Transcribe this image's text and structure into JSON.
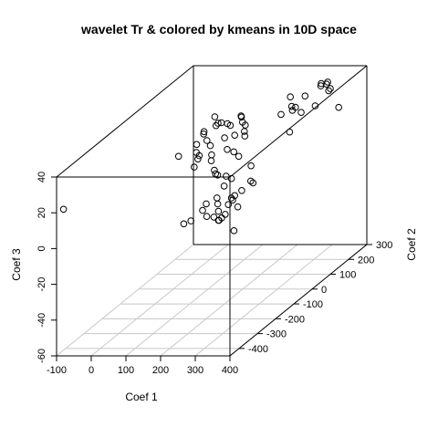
{
  "chart_data": {
    "type": "scatter3d",
    "title": "wavelet Tr & colored by kmeans in 10D space",
    "xlabel": "Coef 1",
    "ylabel": "Coef 2",
    "zlabel": "Coef 3",
    "xlim": [
      -100,
      400
    ],
    "ylim": [
      -450,
      300
    ],
    "zlim": [
      -60,
      40
    ],
    "x_ticks": [
      "-100",
      "0",
      "100",
      "200",
      "300",
      "400"
    ],
    "y_ticks": [
      "-400",
      "-300",
      "-200",
      "-100",
      "0",
      "100",
      "200",
      "300"
    ],
    "z_ticks": [
      "-60",
      "-40",
      "-20",
      "0",
      "20",
      "40"
    ],
    "grid": "xy-floor",
    "points": [
      [
        -80,
        -450,
        22
      ],
      [
        165,
        -80,
        38
      ],
      [
        170,
        -60,
        38
      ],
      [
        140,
        -100,
        35
      ],
      [
        160,
        -120,
        33
      ],
      [
        150,
        -40,
        36
      ],
      [
        180,
        -30,
        34
      ],
      [
        195,
        -90,
        32
      ],
      [
        175,
        -130,
        31
      ],
      [
        210,
        -20,
        35
      ],
      [
        140,
        -140,
        28
      ],
      [
        125,
        -110,
        30
      ],
      [
        155,
        -160,
        26
      ],
      [
        120,
        -60,
        33
      ],
      [
        130,
        -20,
        38
      ],
      [
        140,
        30,
        30
      ],
      [
        170,
        50,
        32
      ],
      [
        190,
        10,
        36
      ],
      [
        210,
        -10,
        29
      ],
      [
        160,
        -190,
        24
      ],
      [
        115,
        -190,
        30
      ],
      [
        185,
        -210,
        32
      ],
      [
        205,
        -180,
        30
      ],
      [
        225,
        -220,
        30
      ],
      [
        255,
        -260,
        28
      ],
      [
        290,
        -220,
        35
      ],
      [
        285,
        -150,
        38
      ],
      [
        275,
        -280,
        27
      ],
      [
        240,
        -120,
        36
      ],
      [
        260,
        -100,
        40
      ],
      [
        250,
        -180,
        33
      ],
      [
        280,
        120,
        30
      ],
      [
        300,
        130,
        28
      ],
      [
        290,
        90,
        40
      ],
      [
        310,
        80,
        35
      ],
      [
        315,
        50,
        38
      ],
      [
        330,
        150,
        30
      ],
      [
        300,
        240,
        35
      ],
      [
        320,
        200,
        37
      ],
      [
        285,
        180,
        33
      ],
      [
        300,
        20,
        36
      ],
      [
        330,
        10,
        27
      ],
      [
        345,
        190,
        40
      ],
      [
        340,
        260,
        20
      ],
      [
        300,
        290,
        28
      ],
      [
        290,
        300,
        26
      ],
      [
        305,
        260,
        33
      ],
      [
        290,
        -320,
        31
      ],
      [
        310,
        -300,
        28
      ],
      [
        320,
        -250,
        35
      ],
      [
        345,
        -230,
        28
      ],
      [
        360,
        -260,
        22
      ],
      [
        340,
        -310,
        18
      ],
      [
        310,
        -350,
        20
      ],
      [
        330,
        -380,
        15
      ],
      [
        300,
        -390,
        20
      ],
      [
        315,
        -280,
        25
      ],
      [
        300,
        -410,
        18
      ],
      [
        320,
        -330,
        25
      ],
      [
        355,
        -300,
        20
      ],
      [
        370,
        -350,
        15
      ],
      [
        350,
        -400,
        13
      ],
      [
        335,
        -200,
        16
      ],
      [
        240,
        -360,
        8
      ],
      [
        230,
        -380,
        8
      ],
      [
        270,
        -330,
        8
      ],
      [
        280,
        -310,
        6
      ],
      [
        300,
        -320,
        5
      ],
      [
        330,
        -380,
        10
      ],
      [
        360,
        -400,
        15
      ],
      [
        380,
        -390,
        5
      ],
      [
        350,
        -340,
        18
      ],
      [
        320,
        -290,
        15
      ],
      [
        270,
        -270,
        10
      ],
      [
        290,
        -250,
        8
      ]
    ]
  }
}
